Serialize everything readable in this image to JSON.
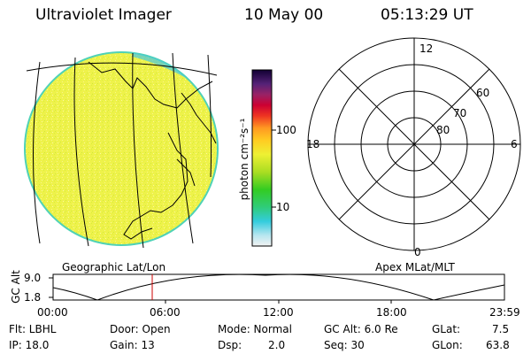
{
  "header": {
    "title": "Ultraviolet Imager",
    "date": "10 May 00",
    "time": "05:13:29 UT"
  },
  "colorbar": {
    "unit_label": "photon cm⁻²s⁻¹",
    "ticks": [
      "100",
      "10"
    ]
  },
  "polar_plot": {
    "mlt_labels": [
      "12",
      "18",
      "6",
      "0"
    ],
    "lat_labels": [
      "60",
      "70",
      "80"
    ]
  },
  "map_labels": {
    "left": "Geographic Lat/Lon",
    "right": "Apex MLat/MLT"
  },
  "altitude_plot": {
    "axis_label": "GC Alt",
    "y_ticks": [
      "9.0",
      "1.8"
    ],
    "x_ticks": [
      "00:00",
      "06:00",
      "12:00",
      "18:00",
      "23:59"
    ]
  },
  "footer": {
    "row1": {
      "flt": "Flt: LBHL",
      "door": "Door: Open",
      "mode": "Mode: Normal",
      "gc_alt": "GC Alt: 6.0 Re",
      "glat_label": "GLat:",
      "glat_value": "7.5"
    },
    "row2": {
      "ip": "IP: 18.0",
      "gain": "Gain: 13",
      "dsp_label": "Dsp:",
      "dsp_value": "2.0",
      "seq": "Seq: 30",
      "glon_label": "GLon:",
      "glon_value": "63.8"
    }
  },
  "colors": {
    "disk": "#ecf44a",
    "disk_rim": "#4fd2b6",
    "line": "#000000",
    "marker": "#cc0000"
  }
}
